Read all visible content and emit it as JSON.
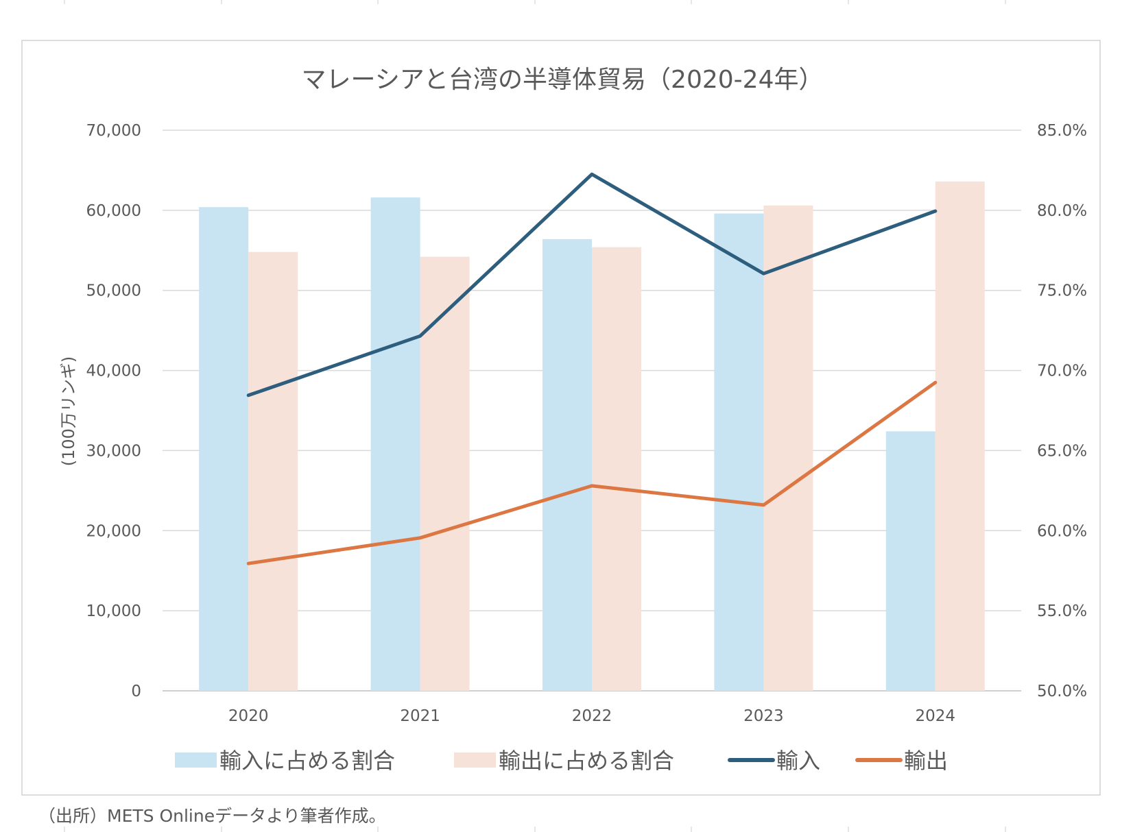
{
  "chart_data": {
    "type": "bar+line",
    "title": "マレーシアと台湾の半導体貿易（2020-24年）",
    "ylabel": "(100万リンギ)",
    "y2label": "",
    "categories": [
      "2020",
      "2021",
      "2022",
      "2023",
      "2024"
    ],
    "ylim": [
      0,
      70000
    ],
    "y2lim": [
      50.0,
      85.0
    ],
    "yticks": [
      "0",
      "10,000",
      "20,000",
      "30,000",
      "40,000",
      "50,000",
      "60,000",
      "70,000"
    ],
    "y2ticks": [
      "50.0%",
      "55.0%",
      "60.0%",
      "65.0%",
      "70.0%",
      "75.0%",
      "80.0%",
      "85.0%"
    ],
    "grid": true,
    "legend_position": "bottom",
    "series": [
      {
        "name": "輸入に占める割合",
        "type": "bar",
        "axis": "right",
        "unit": "%",
        "color": "#c8e3f2",
        "values": [
          80.2,
          80.8,
          78.2,
          79.8,
          66.2
        ]
      },
      {
        "name": "輸出に占める割合",
        "type": "bar",
        "axis": "right",
        "unit": "%",
        "color": "#f6e2d8",
        "values": [
          77.4,
          77.1,
          77.7,
          80.3,
          81.8
        ]
      },
      {
        "name": "輸入",
        "type": "line",
        "axis": "left",
        "color": "#2e5e7e",
        "values": [
          36900,
          44300,
          64500,
          52100,
          59900
        ]
      },
      {
        "name": "輸出",
        "type": "line",
        "axis": "left",
        "color": "#dc7743",
        "values": [
          15900,
          19100,
          25600,
          23200,
          38500
        ]
      }
    ]
  },
  "source_note": "（出所）METS Onlineデータより筆者作成。"
}
